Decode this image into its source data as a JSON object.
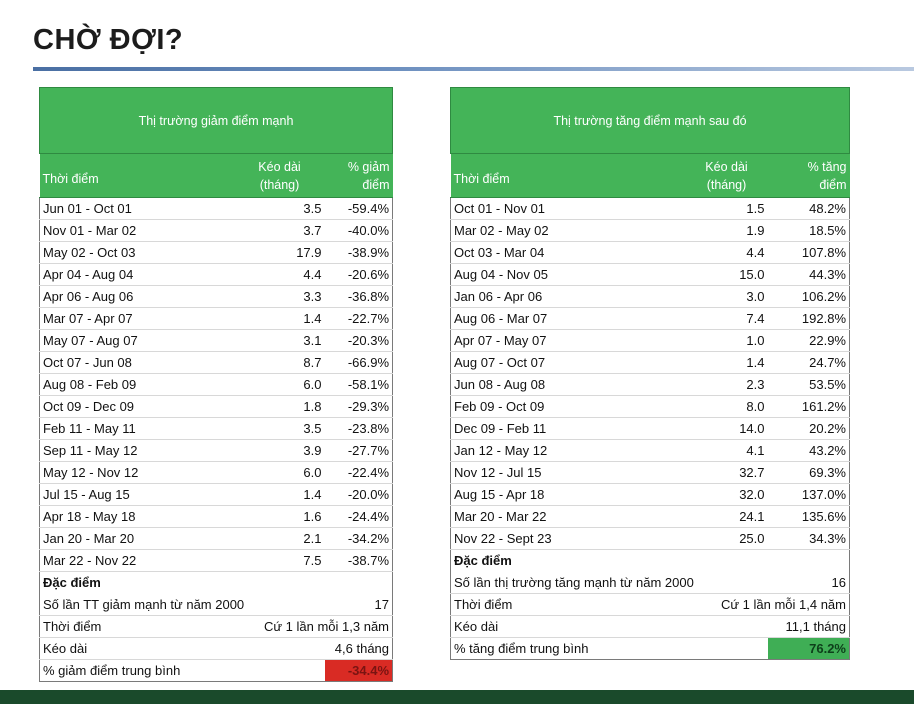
{
  "title": "CHỜ ĐỢI?",
  "left": {
    "table_title": "Thị trường giảm điểm mạnh",
    "headers": {
      "period": "Thời điểm",
      "duration_l1": "Kéo dài",
      "duration_l2": "(tháng)",
      "pct_l1": "% giảm",
      "pct_l2": "điểm"
    },
    "rows": [
      {
        "period": "Jun 01 - Oct 01",
        "duration": "3.5",
        "pct": "-59.4%"
      },
      {
        "period": "Nov 01 - Mar 02",
        "duration": "3.7",
        "pct": "-40.0%"
      },
      {
        "period": "May 02 - Oct 03",
        "duration": "17.9",
        "pct": "-38.9%"
      },
      {
        "period": "Apr 04 - Aug 04",
        "duration": "4.4",
        "pct": "-20.6%"
      },
      {
        "period": "Apr 06 - Aug 06",
        "duration": "3.3",
        "pct": "-36.8%"
      },
      {
        "period": "Mar 07 - Apr 07",
        "duration": "1.4",
        "pct": "-22.7%"
      },
      {
        "period": "May 07 - Aug 07",
        "duration": "3.1",
        "pct": "-20.3%"
      },
      {
        "period": "Oct 07 - Jun 08",
        "duration": "8.7",
        "pct": "-66.9%"
      },
      {
        "period": "Aug 08 - Feb 09",
        "duration": "6.0",
        "pct": "-58.1%"
      },
      {
        "period": "Oct 09 - Dec 09",
        "duration": "1.8",
        "pct": "-29.3%"
      },
      {
        "period": "Feb 11 - May 11",
        "duration": "3.5",
        "pct": "-23.8%"
      },
      {
        "period": "Sep 11 - May 12",
        "duration": "3.9",
        "pct": "-27.7%"
      },
      {
        "period": "May 12 - Nov 12",
        "duration": "6.0",
        "pct": "-22.4%"
      },
      {
        "period": "Jul 15 - Aug 15",
        "duration": "1.4",
        "pct": "-20.0%"
      },
      {
        "period": "Apr 18 - May 18",
        "duration": "1.6",
        "pct": "-24.4%"
      },
      {
        "period": "Jan 20 - Mar 20",
        "duration": "2.1",
        "pct": "-34.2%"
      },
      {
        "period": "Mar 22 - Nov 22",
        "duration": "7.5",
        "pct": "-38.7%"
      }
    ],
    "features_title": "Đặc điểm",
    "features": [
      {
        "label": "Số lần TT giảm mạnh từ năm 2000",
        "value": "17"
      },
      {
        "label": "Thời điểm",
        "value": "Cứ 1 lần mỗi 1,3 năm"
      },
      {
        "label": "Kéo dài",
        "value": "4,6 tháng"
      }
    ],
    "avg_label": "% giảm điểm trung bình",
    "avg_value": "-34.4%",
    "avg_color": "#d92b24"
  },
  "right": {
    "table_title": "Thị trường tăng điểm mạnh sau đó",
    "headers": {
      "period": "Thời điểm",
      "duration_l1": "Kéo dài",
      "duration_l2": "(tháng)",
      "pct_l1": "% tăng",
      "pct_l2": "điểm"
    },
    "rows": [
      {
        "period": "Oct 01 - Nov 01",
        "duration": "1.5",
        "pct": "48.2%"
      },
      {
        "period": "Mar 02 - May 02",
        "duration": "1.9",
        "pct": "18.5%"
      },
      {
        "period": "Oct 03 - Mar 04",
        "duration": "4.4",
        "pct": "107.8%"
      },
      {
        "period": "Aug 04 - Nov 05",
        "duration": "15.0",
        "pct": "44.3%"
      },
      {
        "period": "Jan 06 - Apr 06",
        "duration": "3.0",
        "pct": "106.2%"
      },
      {
        "period": "Aug 06 - Mar 07",
        "duration": "7.4",
        "pct": "192.8%"
      },
      {
        "period": "Apr 07 - May 07",
        "duration": "1.0",
        "pct": "22.9%"
      },
      {
        "period": "Aug 07 - Oct 07",
        "duration": "1.4",
        "pct": "24.7%"
      },
      {
        "period": "Jun 08 - Aug 08",
        "duration": "2.3",
        "pct": "53.5%"
      },
      {
        "period": "Feb 09 - Oct 09",
        "duration": "8.0",
        "pct": "161.2%"
      },
      {
        "period": "Dec 09 - Feb 11",
        "duration": "14.0",
        "pct": "20.2%"
      },
      {
        "period": "Jan 12 - May 12",
        "duration": "4.1",
        "pct": "43.2%"
      },
      {
        "period": "Nov 12 - Jul 15",
        "duration": "32.7",
        "pct": "69.3%"
      },
      {
        "period": "Aug 15 - Apr 18",
        "duration": "32.0",
        "pct": "137.0%"
      },
      {
        "period": "Mar 20 - Mar 22",
        "duration": "24.1",
        "pct": "135.6%"
      },
      {
        "period": "Nov 22 - Sept 23",
        "duration": "25.0",
        "pct": "34.3%"
      }
    ],
    "features_title": "Đặc điểm",
    "features": [
      {
        "label": "Số lần thị trường tăng mạnh từ năm 2000",
        "value": "16"
      },
      {
        "label": "Thời điểm",
        "value": "Cứ 1 lần mỗi 1,4 năm"
      },
      {
        "label": "Kéo dài",
        "value": "11,1 tháng"
      }
    ],
    "avg_label": "% tăng điểm trung bình",
    "avg_value": "76.2%",
    "avg_color": "#3fae55"
  }
}
